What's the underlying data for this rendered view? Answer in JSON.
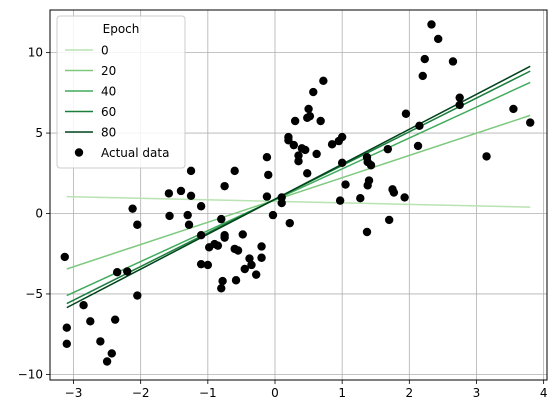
{
  "chart_data": {
    "type": "scatter",
    "xlim": [
      -3.35,
      4.05
    ],
    "ylim": [
      -10.35,
      12.65
    ],
    "xticks": [
      -3,
      -2,
      -1,
      0,
      1,
      2,
      3,
      4
    ],
    "yticks": [
      -10,
      -5,
      0,
      5,
      10
    ],
    "grid": true,
    "legend": {
      "placement": "top-left",
      "title": "Epoch",
      "entries": [
        "0",
        "20",
        "40",
        "60",
        "80",
        "Actual data"
      ]
    },
    "lines": [
      {
        "name": "0",
        "color": "#b9e3b2",
        "x": [
          -3.1,
          3.8
        ],
        "y": [
          1.05,
          0.4
        ]
      },
      {
        "name": "20",
        "color": "#7fc97f",
        "x": [
          -3.1,
          3.8
        ],
        "y": [
          -3.45,
          6.1
        ]
      },
      {
        "name": "40",
        "color": "#41ab5d",
        "x": [
          -3.1,
          3.8
        ],
        "y": [
          -5.1,
          8.15
        ]
      },
      {
        "name": "60",
        "color": "#1b7e3d",
        "x": [
          -3.1,
          3.8
        ],
        "y": [
          -5.6,
          8.85
        ]
      },
      {
        "name": "80",
        "color": "#00441b",
        "x": [
          -3.1,
          3.8
        ],
        "y": [
          -5.85,
          9.15
        ]
      }
    ],
    "scatter": {
      "name": "Actual data",
      "color": "#000000",
      "points": [
        [
          -3.13,
          -2.7
        ],
        [
          -3.1,
          -7.1
        ],
        [
          -3.1,
          -8.1
        ],
        [
          -2.85,
          -5.7
        ],
        [
          -2.75,
          -6.7
        ],
        [
          -2.6,
          -7.95
        ],
        [
          -2.5,
          -9.2
        ],
        [
          -2.43,
          -8.7
        ],
        [
          -2.38,
          -6.6
        ],
        [
          -2.35,
          -3.65
        ],
        [
          -2.2,
          -3.6
        ],
        [
          -2.12,
          0.3
        ],
        [
          -2.05,
          -0.7
        ],
        [
          -2.05,
          -5.1
        ],
        [
          -1.58,
          1.25
        ],
        [
          -1.57,
          -0.15
        ],
        [
          -1.4,
          1.4
        ],
        [
          -1.3,
          -0.1
        ],
        [
          -1.28,
          -0.7
        ],
        [
          -1.25,
          2.65
        ],
        [
          -1.25,
          1.1
        ],
        [
          -1.1,
          0.45
        ],
        [
          -1.1,
          -1.35
        ],
        [
          -1.1,
          -3.15
        ],
        [
          -1.0,
          -3.2
        ],
        [
          -0.98,
          -2.1
        ],
        [
          -0.9,
          -1.9
        ],
        [
          -0.85,
          -2.0
        ],
        [
          -0.8,
          -0.35
        ],
        [
          -0.8,
          -4.65
        ],
        [
          -0.78,
          -4.2
        ],
        [
          -0.75,
          -1.35
        ],
        [
          -0.75,
          -1.5
        ],
        [
          -0.75,
          1.7
        ],
        [
          -0.6,
          2.65
        ],
        [
          -0.6,
          -2.2
        ],
        [
          -0.58,
          -4.15
        ],
        [
          -0.55,
          -2.3
        ],
        [
          -0.48,
          -1.3
        ],
        [
          -0.45,
          -3.45
        ],
        [
          -0.38,
          -2.8
        ],
        [
          -0.35,
          -3.2
        ],
        [
          -0.28,
          -3.8
        ],
        [
          -0.2,
          -2.05
        ],
        [
          -0.2,
          -2.75
        ],
        [
          -0.12,
          3.5
        ],
        [
          -0.12,
          1.05
        ],
        [
          -0.1,
          2.4
        ],
        [
          -0.03,
          -0.1
        ],
        [
          0.1,
          1.0
        ],
        [
          0.1,
          0.65
        ],
        [
          0.2,
          4.55
        ],
        [
          0.2,
          4.75
        ],
        [
          0.22,
          -0.6
        ],
        [
          0.28,
          4.25
        ],
        [
          0.3,
          5.75
        ],
        [
          0.35,
          3.6
        ],
        [
          0.35,
          3.25
        ],
        [
          0.4,
          4.05
        ],
        [
          0.45,
          3.95
        ],
        [
          0.48,
          2.5
        ],
        [
          0.48,
          5.95
        ],
        [
          0.5,
          6.5
        ],
        [
          0.52,
          6.05
        ],
        [
          0.57,
          7.55
        ],
        [
          0.62,
          3.7
        ],
        [
          0.68,
          5.75
        ],
        [
          0.72,
          8.25
        ],
        [
          0.85,
          4.3
        ],
        [
          0.95,
          4.5
        ],
        [
          0.97,
          0.8
        ],
        [
          1.0,
          4.75
        ],
        [
          1.0,
          3.15
        ],
        [
          1.05,
          1.8
        ],
        [
          1.27,
          0.95
        ],
        [
          1.37,
          -1.15
        ],
        [
          1.37,
          3.5
        ],
        [
          1.38,
          3.2
        ],
        [
          1.38,
          1.75
        ],
        [
          1.4,
          2.05
        ],
        [
          1.43,
          3.0
        ],
        [
          1.68,
          4.0
        ],
        [
          1.7,
          -0.4
        ],
        [
          1.75,
          1.5
        ],
        [
          1.77,
          1.3
        ],
        [
          1.93,
          1.0
        ],
        [
          1.95,
          6.2
        ],
        [
          2.13,
          4.2
        ],
        [
          2.15,
          5.45
        ],
        [
          2.2,
          8.55
        ],
        [
          2.23,
          9.6
        ],
        [
          2.33,
          11.75
        ],
        [
          2.43,
          10.85
        ],
        [
          2.65,
          9.45
        ],
        [
          2.75,
          6.75
        ],
        [
          2.75,
          7.2
        ],
        [
          3.15,
          3.55
        ],
        [
          3.55,
          6.5
        ],
        [
          3.8,
          5.65
        ]
      ]
    }
  }
}
